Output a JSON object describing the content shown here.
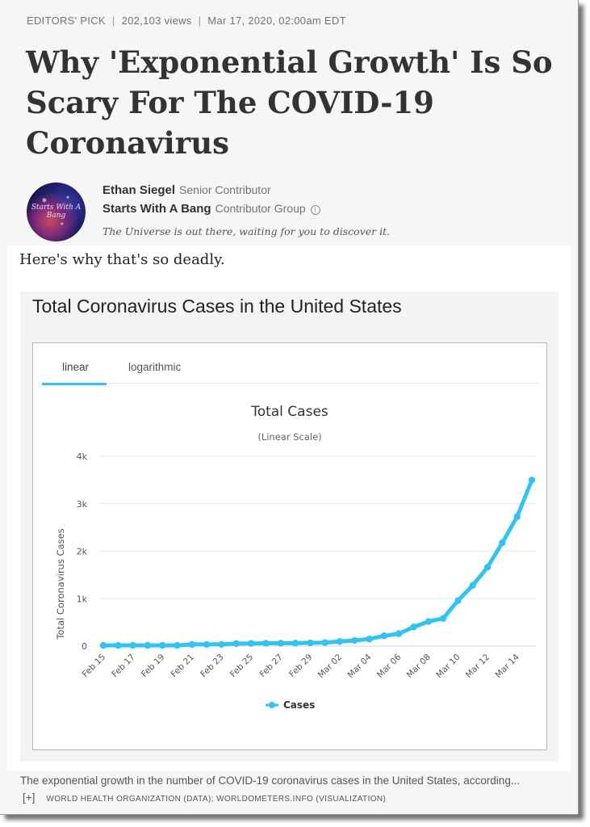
{
  "meta": {
    "pick": "EDITORS' PICK",
    "views": "202,103 views",
    "date": "Mar 17, 2020, 02:00am EDT"
  },
  "headline": "Why 'Exponential Growth' Is So Scary For The COVID-19 Coronavirus",
  "avatar": {
    "text": "Starts With A Bang"
  },
  "author": {
    "name": "Ethan Siegel",
    "role": "Senior Contributor",
    "group": "Starts With A Bang",
    "group_role": "Contributor Group",
    "tagline": "The Universe is out there, waiting for you to discover it."
  },
  "intro": "Here's why that's so deadly.",
  "card_title": "Total Coronavirus Cases in the United States",
  "tabs": {
    "linear": "linear",
    "logarithmic": "logarithmic",
    "active": "linear"
  },
  "chart_data": {
    "type": "line",
    "title": "Total Cases",
    "subtitle": "(Linear Scale)",
    "ylabel": "Total Coronavirus Cases",
    "xlabel": "",
    "ylim": [
      0,
      4000
    ],
    "yticks": [
      0,
      1000,
      2000,
      3000,
      4000
    ],
    "ytick_labels": [
      "0",
      "1k",
      "2k",
      "3k",
      "4k"
    ],
    "grid": true,
    "legend_position": "bottom-center",
    "color": "#33c3f0",
    "x": [
      "Feb 15",
      "Feb 16",
      "Feb 17",
      "Feb 18",
      "Feb 19",
      "Feb 20",
      "Feb 21",
      "Feb 22",
      "Feb 23",
      "Feb 24",
      "Feb 25",
      "Feb 26",
      "Feb 27",
      "Feb 28",
      "Feb 29",
      "Mar 01",
      "Mar 02",
      "Mar 03",
      "Mar 04",
      "Mar 05",
      "Mar 06",
      "Mar 07",
      "Mar 08",
      "Mar 09",
      "Mar 10",
      "Mar 11",
      "Mar 12",
      "Mar 13",
      "Mar 14",
      "Mar 15"
    ],
    "xtick_labels": [
      "Feb 15",
      "Feb 17",
      "Feb 19",
      "Feb 21",
      "Feb 23",
      "Feb 25",
      "Feb 27",
      "Feb 29",
      "Mar 02",
      "Mar 04",
      "Mar 06",
      "Mar 08",
      "Mar 10",
      "Mar 12",
      "Mar 14"
    ],
    "series": [
      {
        "name": "Cases",
        "values": [
          15,
          15,
          15,
          15,
          15,
          15,
          35,
          35,
          35,
          53,
          57,
          60,
          60,
          62,
          68,
          74,
          98,
          118,
          149,
          217,
          262,
          402,
          518,
          583,
          959,
          1281,
          1663,
          2179,
          2726,
          3499
        ]
      }
    ]
  },
  "caption": {
    "text": "The exponential growth in the number of COVID-19 coronavirus cases in the United States, according...",
    "more": "[+]",
    "credit": "WORLD HEALTH ORGANIZATION (DATA); WORLDOMETERS.INFO (VISUALIZATION)"
  }
}
